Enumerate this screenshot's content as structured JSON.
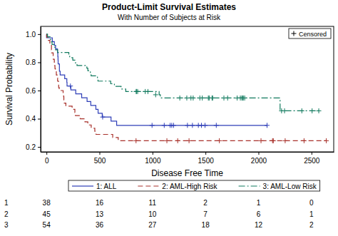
{
  "chart_data": {
    "type": "line",
    "title": "Product-Limit Survival Estimates",
    "subtitle": "With Number of Subjects at Risk",
    "x_label": "Disease Free Time",
    "y_label": "Survival Probability",
    "xlim": [
      -55,
      2710
    ],
    "ylim": [
      0.165,
      1.055
    ],
    "xticks": [
      0,
      500,
      1000,
      1500,
      2000,
      2500
    ],
    "yticks": [
      0.2,
      0.4,
      0.6,
      0.8,
      {
        "value": 1,
        "label": "1.0"
      }
    ],
    "grid": false,
    "legend": "bottom",
    "series": [
      {
        "name": "1: ALL",
        "color": "#2f3fb8",
        "line_style": "solid",
        "x": [
          0,
          1,
          55,
          74,
          86,
          104,
          107,
          109,
          110,
          122,
          129,
          172,
          192,
          194,
          230,
          276,
          332,
          383,
          418,
          466,
          487,
          526,
          609,
          662,
          2081
        ],
        "values": [
          1,
          0.974,
          0.947,
          0.921,
          0.895,
          0.868,
          0.842,
          0.816,
          0.789,
          0.737,
          0.711,
          0.684,
          0.658,
          0.632,
          0.604,
          0.577,
          0.549,
          0.522,
          0.494,
          0.467,
          0.439,
          0.412,
          0.383,
          0.353,
          0.353
        ],
        "censored": {
          "x": [
            226,
            530,
            996,
            1111,
            1167,
            1182,
            1199,
            1330,
            1377,
            1433,
            1462,
            1496,
            1602,
            2081
          ],
          "values": [
            0.632,
            0.412,
            0.353,
            0.353,
            0.353,
            0.353,
            0.353,
            0.353,
            0.353,
            0.353,
            0.353,
            0.353,
            0.353,
            0.353
          ]
        }
      },
      {
        "name": "2: AML-High Risk",
        "color": "#a8302a",
        "line_style": "dashed",
        "x": [
          0,
          2,
          16,
          32,
          47,
          48,
          63,
          64,
          74,
          76,
          80,
          84,
          93,
          100,
          105,
          113,
          115,
          120,
          157,
          162,
          164,
          168,
          183,
          242,
          268,
          273,
          318,
          363,
          390,
          422,
          456,
          467,
          625,
          677,
          2640
        ],
        "values": [
          1,
          0.978,
          0.956,
          0.933,
          0.889,
          0.867,
          0.844,
          0.822,
          0.8,
          0.778,
          0.756,
          0.733,
          0.711,
          0.689,
          0.667,
          0.644,
          0.622,
          0.6,
          0.578,
          0.556,
          0.533,
          0.511,
          0.489,
          0.467,
          0.444,
          0.422,
          0.4,
          0.378,
          0.356,
          0.333,
          0.311,
          0.289,
          0.267,
          0.244,
          0.244
        ],
        "censored": {
          "x": [
            845,
            1136,
            1238,
            1345,
            1631,
            2024,
            2133,
            2140,
            2252,
            2430,
            2640
          ],
          "values": [
            0.244,
            0.244,
            0.244,
            0.244,
            0.244,
            0.244,
            0.244,
            0.244,
            0.244,
            0.244,
            0.244
          ]
        }
      },
      {
        "name": "3: AML-Low Risk",
        "color": "#117a5e",
        "line_style": "dashdot",
        "x": [
          0,
          10,
          35,
          48,
          53,
          79,
          80,
          105,
          211,
          219,
          248,
          272,
          288,
          381,
          390,
          414,
          421,
          481,
          486,
          606,
          641,
          704,
          748,
          1063,
          1074,
          2204,
          2569
        ],
        "values": [
          1,
          0.981,
          0.963,
          0.944,
          0.926,
          0.907,
          0.889,
          0.87,
          0.852,
          0.833,
          0.815,
          0.796,
          0.778,
          0.759,
          0.741,
          0.722,
          0.704,
          0.685,
          0.667,
          0.648,
          0.63,
          0.611,
          0.593,
          0.57,
          0.547,
          0.456,
          0.456
        ],
        "censored": {
          "x": [
            847,
            848,
            860,
            932,
            957,
            1030,
            1258,
            1324,
            1363,
            1384,
            1447,
            1470,
            1527,
            1535,
            1562,
            1568,
            1674,
            1709,
            1799,
            1829,
            1843,
            1850,
            1857,
            1870,
            2218,
            2246,
            2409,
            2506,
            2569
          ],
          "values": [
            0.593,
            0.593,
            0.593,
            0.593,
            0.593,
            0.57,
            0.547,
            0.547,
            0.547,
            0.547,
            0.547,
            0.547,
            0.547,
            0.547,
            0.547,
            0.547,
            0.547,
            0.547,
            0.547,
            0.547,
            0.547,
            0.547,
            0.547,
            0.547,
            0.456,
            0.456,
            0.456,
            0.456,
            0.456
          ]
        }
      }
    ],
    "inset_legend": {
      "label": "Censored",
      "marker": "plus"
    },
    "at_risk": {
      "x": [
        0,
        500,
        1000,
        1500,
        2000,
        2500
      ],
      "rows": [
        {
          "label": "1",
          "values": [
            38,
            16,
            11,
            2,
            1,
            0
          ]
        },
        {
          "label": "2",
          "values": [
            45,
            13,
            10,
            7,
            6,
            1
          ]
        },
        {
          "label": "3",
          "values": [
            54,
            36,
            27,
            18,
            12,
            2
          ]
        }
      ]
    }
  }
}
